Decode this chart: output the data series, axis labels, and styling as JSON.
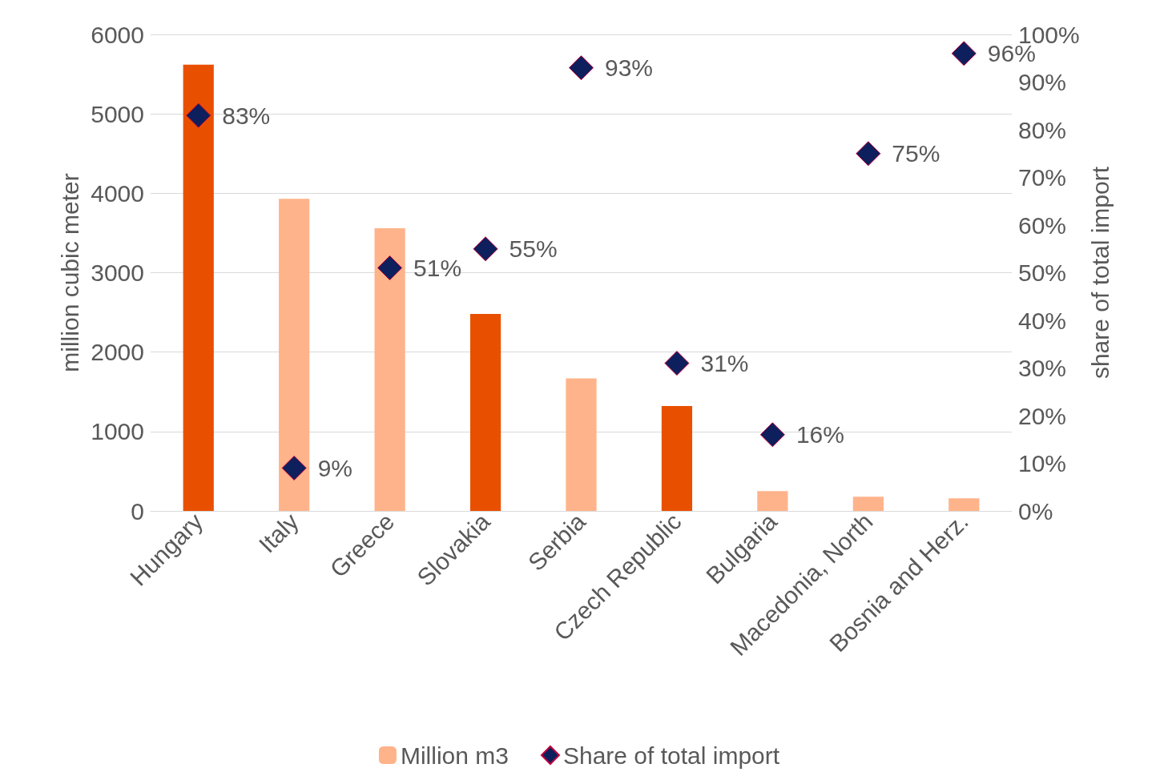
{
  "chart_data": {
    "type": "bar",
    "ylabel": "million cubic meter",
    "y2label": "share of total import",
    "categories": [
      "Hungary",
      "Italy",
      "Greece",
      "Slovakia",
      "Serbia",
      "Czech Republic",
      "Bulgaria",
      "Macedonia, North",
      "Bosnia and Herz."
    ],
    "series": [
      {
        "name": "Million m3",
        "color": "#ffb38a",
        "colors": [
          "#e85000",
          "#ffb38a",
          "#ffb38a",
          "#e85000",
          "#ffb38a",
          "#e85000",
          "#ffb38a",
          "#ffb38a",
          "#ffb38a"
        ],
        "values": [
          5620,
          3930,
          3560,
          2480,
          1670,
          1320,
          250,
          180,
          160
        ]
      },
      {
        "name": "Share of total import",
        "type": "scatter",
        "axis": "y2",
        "color": "#0d1f5c",
        "marker": "diamond",
        "values": [
          83,
          9,
          51,
          55,
          93,
          31,
          16,
          75,
          96
        ],
        "value_labels": [
          "83%",
          "9%",
          "51%",
          "55%",
          "93%",
          "31%",
          "16%",
          "75%",
          "96%"
        ]
      }
    ],
    "ylim": [
      0,
      6000
    ],
    "yticks": [
      0,
      1000,
      2000,
      3000,
      4000,
      5000,
      6000
    ],
    "y2lim": [
      0,
      100
    ],
    "y2ticks": [
      {
        "value": 0,
        "label": "0%"
      },
      {
        "value": 10,
        "label": "10%"
      },
      {
        "value": 20,
        "label": "20%"
      },
      {
        "value": 30,
        "label": "30%"
      },
      {
        "value": 40,
        "label": "40%"
      },
      {
        "value": 50,
        "label": "50%"
      },
      {
        "value": 60,
        "label": "60%"
      },
      {
        "value": 70,
        "label": "70%"
      },
      {
        "value": 80,
        "label": "80%"
      },
      {
        "value": 90,
        "label": "90%"
      },
      {
        "value": 100,
        "label": "100%"
      }
    ],
    "grid": "y",
    "legend": "bottom"
  }
}
